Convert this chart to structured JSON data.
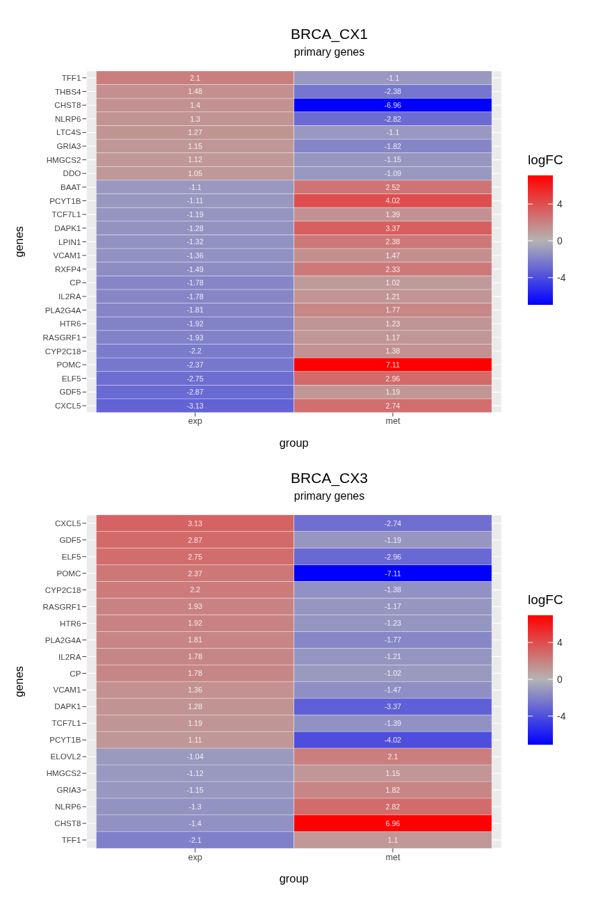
{
  "chart_data": [
    {
      "type": "heatmap",
      "title": "BRCA_CX1",
      "subtitle": "primary genes",
      "xlabel": "group",
      "ylabel": "genes",
      "clabel": "logFC",
      "categories": [
        "exp",
        "met"
      ],
      "y_categories": [
        "TFF1",
        "THBS4",
        "CHST8",
        "NLRP6",
        "LTC4S",
        "GRIA3",
        "HMGCS2",
        "DDO",
        "BAAT",
        "PCYT1B",
        "TCF7L1",
        "DAPK1",
        "LPIN1",
        "VCAM1",
        "RXFP4",
        "CP",
        "IL2RA",
        "PLA2G4A",
        "HTR6",
        "RASGRF1",
        "CYP2C18",
        "POMC",
        "ELF5",
        "GDF5",
        "CXCL5"
      ],
      "cells": [
        [
          2.1,
          -1.1
        ],
        [
          1.48,
          -2.38
        ],
        [
          1.4,
          -6.96
        ],
        [
          1.3,
          -2.82
        ],
        [
          1.27,
          -1.1
        ],
        [
          1.15,
          -1.82
        ],
        [
          1.12,
          -1.15
        ],
        [
          1.05,
          -1.09
        ],
        [
          -1.1,
          2.52
        ],
        [
          -1.11,
          4.02
        ],
        [
          -1.19,
          1.39
        ],
        [
          -1.28,
          3.37
        ],
        [
          -1.32,
          2.38
        ],
        [
          -1.36,
          1.47
        ],
        [
          -1.49,
          2.33
        ],
        [
          -1.78,
          1.02
        ],
        [
          -1.78,
          1.21
        ],
        [
          -1.81,
          1.77
        ],
        [
          -1.92,
          1.23
        ],
        [
          -1.93,
          1.17
        ],
        [
          -2.2,
          1.38
        ],
        [
          -2.37,
          7.11
        ],
        [
          -2.75,
          2.96
        ],
        [
          -2.87,
          1.19
        ],
        [
          -3.13,
          2.74
        ]
      ],
      "clim": [
        -6.96,
        7.11
      ],
      "cticks": [
        -4,
        0,
        4
      ],
      "data_labels": true,
      "grid": true
    },
    {
      "type": "heatmap",
      "title": "BRCA_CX3",
      "subtitle": "primary genes",
      "xlabel": "group",
      "ylabel": "genes",
      "clabel": "logFC",
      "categories": [
        "exp",
        "met"
      ],
      "y_categories": [
        "CXCL5",
        "GDF5",
        "ELF5",
        "POMC",
        "CYP2C18",
        "RASGRF1",
        "HTR6",
        "PLA2G4A",
        "IL2RA",
        "CP",
        "VCAM1",
        "DAPK1",
        "TCF7L1",
        "PCYT1B",
        "ELOVL2",
        "HMGCS2",
        "GRIA3",
        "NLRP6",
        "CHST8",
        "TFF1"
      ],
      "cells": [
        [
          3.13,
          -2.74
        ],
        [
          2.87,
          -1.19
        ],
        [
          2.75,
          -2.96
        ],
        [
          2.37,
          -7.11
        ],
        [
          2.2,
          -1.38
        ],
        [
          1.93,
          -1.17
        ],
        [
          1.92,
          -1.23
        ],
        [
          1.81,
          -1.77
        ],
        [
          1.78,
          -1.21
        ],
        [
          1.78,
          -1.02
        ],
        [
          1.36,
          -1.47
        ],
        [
          1.28,
          -3.37
        ],
        [
          1.19,
          -1.39
        ],
        [
          1.11,
          -4.02
        ],
        [
          -1.04,
          2.1
        ],
        [
          -1.12,
          1.15
        ],
        [
          -1.15,
          1.82
        ],
        [
          -1.3,
          2.82
        ],
        [
          -1.4,
          6.96
        ],
        [
          -2.1,
          1.1
        ]
      ],
      "clim": [
        -7.11,
        6.96
      ],
      "cticks": [
        -4,
        0,
        4
      ],
      "data_labels": true,
      "grid": true
    }
  ]
}
